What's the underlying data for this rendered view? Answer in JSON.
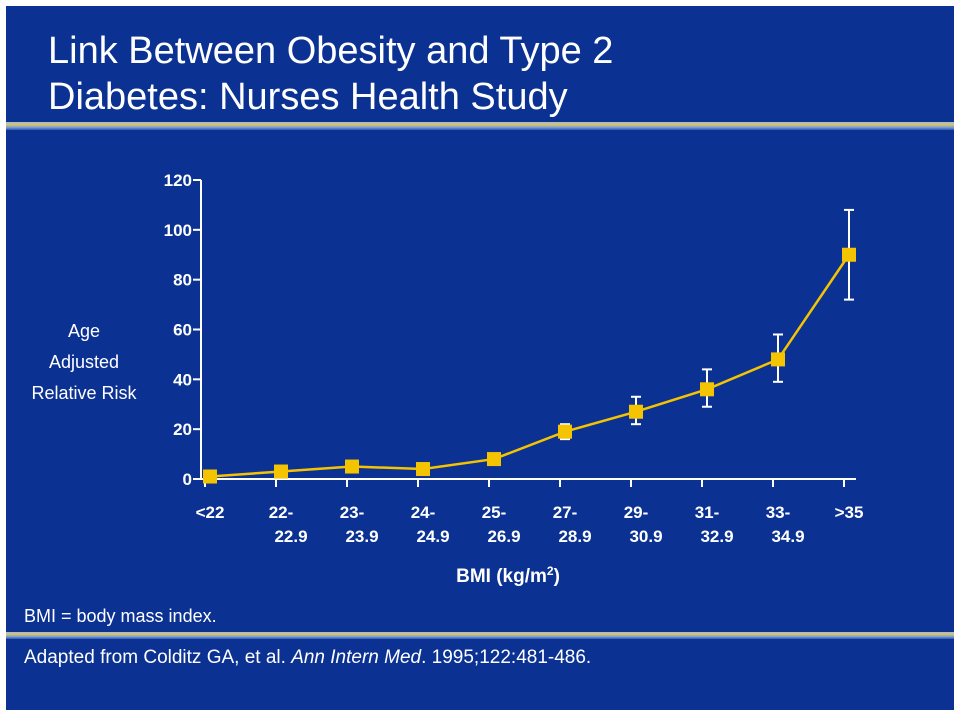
{
  "title": "Link Between Obesity and Type 2\nDiabetes: Nurses Health Study",
  "footnote": "BMI = body mass index.",
  "citation": {
    "prefix": "Adapted from Colditz GA, et al. ",
    "journal": "Ann Intern Med",
    "suffix": ". 1995;122:481-486."
  },
  "colors": {
    "background": "#0b3293",
    "series": "#f5c400",
    "axis": "#ffffff",
    "text": "#ffffff"
  },
  "chart_data": {
    "type": "line",
    "xlabel": "BMI (kg/m2)",
    "ylabel": [
      "Age",
      "Adjusted",
      "Relative Risk"
    ],
    "ylim": [
      0,
      120
    ],
    "yticks": [
      0,
      20,
      40,
      60,
      80,
      100,
      120
    ],
    "grid": false,
    "categories": [
      [
        "<22"
      ],
      [
        "22-",
        "22.9"
      ],
      [
        "23-",
        "23.9"
      ],
      [
        "24-",
        "24.9"
      ],
      [
        "25-",
        "26.9"
      ],
      [
        "27-",
        "28.9"
      ],
      [
        "29-",
        "30.9"
      ],
      [
        "31-",
        "32.9"
      ],
      [
        "33-",
        "34.9"
      ],
      [
        ">35"
      ]
    ],
    "values": [
      1,
      3,
      5,
      4,
      8,
      19,
      27,
      36,
      48,
      90
    ],
    "error_bars": [
      null,
      null,
      null,
      null,
      null,
      [
        16,
        22
      ],
      [
        22,
        33
      ],
      [
        29,
        44
      ],
      [
        39,
        58
      ],
      [
        72,
        108
      ]
    ]
  }
}
